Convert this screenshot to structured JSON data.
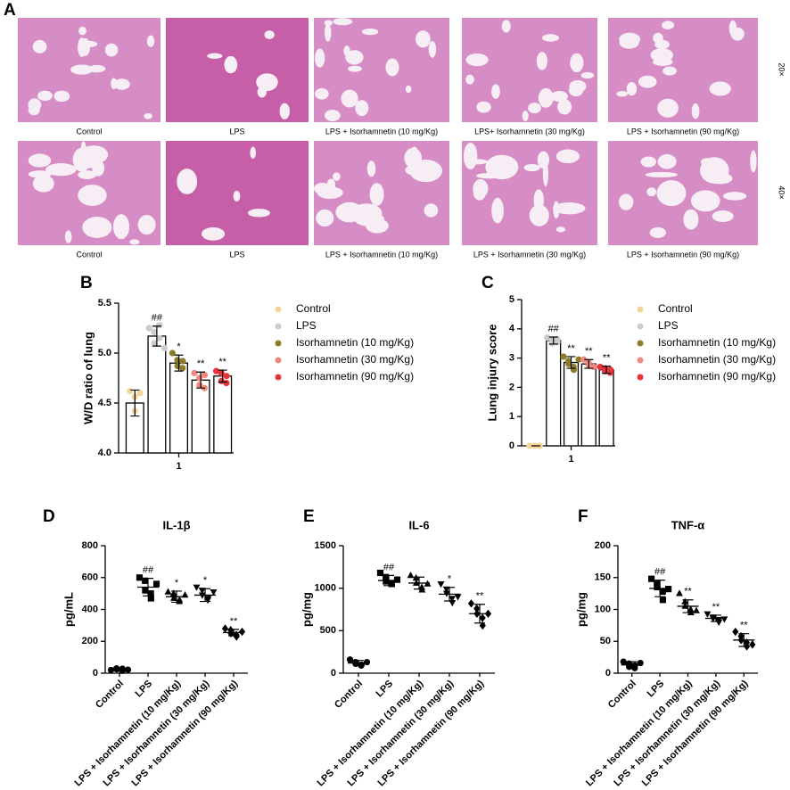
{
  "figure": {
    "histology": {
      "label": "A",
      "magnifications": [
        "20×",
        "40×"
      ],
      "captions": [
        [
          "Control",
          "LPS",
          "LPS + Isorhamnetin (10 mg/Kg)",
          "LPS+ Isorhamnetin (30 mg/Kg)",
          "LPS + Isorhamnetin (90 mg/Kg)"
        ],
        [
          "Control",
          "LPS",
          "LPS + Isorhamnetin (10 mg/Kg)",
          "LPS + Isorhamnetin (30 mg/Kg)",
          "LPS + Isorhamnetin (90 mg/Kg)"
        ]
      ]
    }
  },
  "chart_data": [
    {
      "type": "bar",
      "label": "B",
      "y_label": "W/D ratio of lung",
      "categories": [
        "1"
      ],
      "ylim": [
        4.0,
        5.5
      ],
      "yticks": [
        {
          "value": 4,
          "label": "4.0"
        },
        {
          "value": 4.5,
          "label": "4.5"
        },
        {
          "value": 5,
          "label": "5.0"
        },
        {
          "value": 5.5,
          "label": "5.5"
        }
      ],
      "series": [
        {
          "name": "Control",
          "color": "#f5d49b",
          "values": [
            4.5
          ],
          "errors": [
            0.13
          ],
          "points": [
            [
              4.62,
              4.56,
              4.42,
              4.6
            ]
          ],
          "annotations": [
            null
          ]
        },
        {
          "name": "LPS",
          "color": "#cccccc",
          "values": [
            5.17
          ],
          "errors": [
            0.1
          ],
          "points": [
            [
              5.25,
              5.21,
              5.1,
              5.15,
              5.28,
              5.05
            ]
          ],
          "annotations": [
            "##"
          ]
        },
        {
          "name": "Isorhamnetin (10 mg/Kg)",
          "color": "#8b7d2a",
          "values": [
            4.9
          ],
          "errors": [
            0.08
          ],
          "points": [
            [
              5.0,
              4.93,
              4.87,
              4.85,
              4.92
            ]
          ],
          "annotations": [
            "*"
          ]
        },
        {
          "name": "Isorhamnetin (30 mg/Kg)",
          "color": "#f08a80",
          "values": [
            4.73
          ],
          "errors": [
            0.08
          ],
          "points": [
            [
              4.8,
              4.75,
              4.68,
              4.65,
              4.78
            ]
          ],
          "annotations": [
            "**"
          ]
        },
        {
          "name": "Isorhamnetin (90 mg/Kg)",
          "color": "#e8343a",
          "values": [
            4.77
          ],
          "errors": [
            0.06
          ],
          "points": [
            [
              4.82,
              4.8,
              4.72,
              4.7,
              4.77
            ]
          ],
          "annotations": [
            "**"
          ]
        }
      ]
    },
    {
      "type": "bar",
      "label": "C",
      "y_label": "Lung injury score",
      "categories": [
        "1"
      ],
      "ylim": [
        0,
        5
      ],
      "yticks": [
        0,
        1,
        2,
        3,
        4,
        5
      ],
      "series": [
        {
          "name": "Control",
          "color": "#f5d49b",
          "values": [
            0
          ],
          "errors": [
            0
          ],
          "points": [
            [
              0,
              0,
              0,
              0,
              0
            ]
          ],
          "annotations": [
            null
          ]
        },
        {
          "name": "LPS",
          "color": "#cccccc",
          "values": [
            3.6
          ],
          "errors": [
            0.12
          ],
          "points": [
            [
              3.7,
              3.6,
              3.5,
              3.65,
              3.55
            ]
          ],
          "annotations": [
            "##"
          ]
        },
        {
          "name": "Isorhamnetin (10 mg/Kg)",
          "color": "#8b7d2a",
          "values": [
            2.85
          ],
          "errors": [
            0.2
          ],
          "points": [
            [
              3.05,
              2.9,
              2.8,
              2.7,
              2.6,
              2.95
            ]
          ],
          "annotations": [
            "**"
          ]
        },
        {
          "name": "Isorhamnetin (30 mg/Kg)",
          "color": "#f08a80",
          "values": [
            2.8
          ],
          "errors": [
            0.15
          ],
          "points": [
            [
              2.95,
              2.85,
              2.75,
              2.7
            ]
          ],
          "annotations": [
            "**"
          ]
        },
        {
          "name": "Isorhamnetin (90 mg/Kg)",
          "color": "#e8343a",
          "values": [
            2.6
          ],
          "errors": [
            0.12
          ],
          "points": [
            [
              2.7,
              2.65,
              2.55,
              2.5,
              2.6
            ]
          ],
          "annotations": [
            "**"
          ]
        }
      ]
    },
    {
      "type": "dot",
      "label": "D",
      "title": "IL-1β",
      "y_label": "pg/mL",
      "color": "#000000",
      "categories": [
        "Control",
        "LPS",
        "LPS + Isorhamnetin (10 mg/Kg)",
        "LPS + Isorhamnetin (30 mg/Kg)",
        "LPS + Isorhamnetin (90 mg/Kg)"
      ],
      "markers": [
        "circle",
        "square",
        "triangle",
        "triangle-down",
        "diamond"
      ],
      "ylim": [
        0,
        800
      ],
      "yticks": [
        0,
        200,
        400,
        600,
        800
      ],
      "values": [
        25,
        540,
        480,
        490,
        255
      ],
      "errors": [
        8,
        55,
        35,
        40,
        20
      ],
      "points": [
        [
          20,
          30,
          25,
          15,
          28,
          22
        ],
        [
          600,
          580,
          520,
          500,
          470,
          560
        ],
        [
          510,
          500,
          470,
          450,
          460,
          490
        ],
        [
          540,
          520,
          490,
          460,
          470,
          510
        ],
        [
          280,
          270,
          250,
          240,
          230,
          260
        ]
      ],
      "annotations": [
        null,
        "##",
        "*",
        "*",
        "**"
      ]
    },
    {
      "type": "dot",
      "label": "E",
      "title": "IL-6",
      "y_label": "pg/mg",
      "color": "#000000",
      "categories": [
        "Control",
        "LPS",
        "LPS + Isorhamnetin (10 mg/Kg)",
        "LPS + Isorhamnetin (30 mg/Kg)",
        "LPS + Isorhamnetin (90 mg/Kg)"
      ],
      "markers": [
        "circle",
        "square",
        "triangle",
        "triangle-down",
        "diamond"
      ],
      "ylim": [
        0,
        1500
      ],
      "yticks": [
        0,
        500,
        1000,
        1500
      ],
      "values": [
        120,
        1090,
        1060,
        930,
        700
      ],
      "errors": [
        30,
        60,
        70,
        80,
        110
      ],
      "points": [
        [
          160,
          130,
          110,
          90,
          100,
          130
        ],
        [
          1180,
          1130,
          1080,
          1060,
          1050,
          1100
        ],
        [
          1150,
          1120,
          1060,
          1010,
          980,
          1050
        ],
        [
          1050,
          990,
          940,
          880,
          830,
          900
        ],
        [
          820,
          760,
          700,
          650,
          560,
          700
        ]
      ],
      "annotations": [
        null,
        "##",
        null,
        "*",
        "**"
      ]
    },
    {
      "type": "dot",
      "label": "F",
      "title": "TNF-α",
      "y_label": "pg/mg",
      "color": "#000000",
      "categories": [
        "Control",
        "LPS",
        "LPS + Isorhamnetin (10 mg/Kg)",
        "LPS + Isorhamnetin (30 mg/Kg)",
        "LPS + Isorhamnetin (90 mg/Kg)"
      ],
      "markers": [
        "circle",
        "square",
        "triangle",
        "triangle-down",
        "diamond"
      ],
      "ylim": [
        0,
        200
      ],
      "yticks": [
        0,
        50,
        100,
        150,
        200
      ],
      "values": [
        13,
        133,
        105,
        86,
        52
      ],
      "errors": [
        5,
        13,
        10,
        5,
        10
      ],
      "points": [
        [
          18,
          15,
          10,
          8,
          12,
          16
        ],
        [
          148,
          140,
          135,
          128,
          115,
          132
        ],
        [
          125,
          112,
          105,
          100,
          95,
          98
        ],
        [
          93,
          88,
          86,
          84,
          80,
          85
        ],
        [
          65,
          58,
          52,
          48,
          42,
          45
        ]
      ],
      "annotations": [
        null,
        "##",
        "**",
        "**",
        "**"
      ]
    }
  ]
}
